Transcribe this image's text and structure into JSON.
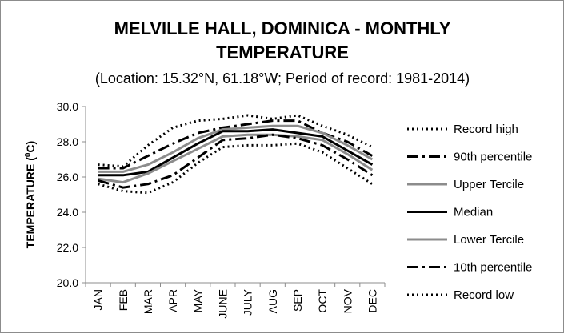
{
  "chart_data": {
    "type": "line",
    "title_line1": "MELVILLE HALL, DOMINICA - MONTHLY",
    "title_line2": "TEMPERATURE",
    "subtitle": "(Location: 15.32°N, 61.18°W; Period of record: 1981-2014)",
    "ylabel_main": "TEMPERATURE (",
    "ylabel_sup": "0",
    "ylabel_end": "C)",
    "xlabel": "",
    "categories": [
      "JAN",
      "FEB",
      "MAR",
      "APR",
      "MAY",
      "JUNE",
      "JULY",
      "AUG",
      "SEP",
      "OCT",
      "NOV",
      "DEC"
    ],
    "ylim": [
      20,
      30
    ],
    "yticks": [
      "20.0",
      "22.0",
      "24.0",
      "26.0",
      "28.0",
      "30.0"
    ],
    "grid": false,
    "legend_position": "right",
    "series": [
      {
        "name": "Record high",
        "color": "#000000",
        "dash": "dot",
        "width": 3,
        "values": [
          26.7,
          26.6,
          27.8,
          28.8,
          29.2,
          29.3,
          29.5,
          29.3,
          29.5,
          28.9,
          28.4,
          27.7
        ]
      },
      {
        "name": "90th percentile",
        "color": "#000000",
        "dash": "dashdot",
        "width": 3,
        "values": [
          26.5,
          26.5,
          27.2,
          27.9,
          28.5,
          28.8,
          29.0,
          29.2,
          29.2,
          28.5,
          28.0,
          27.2
        ]
      },
      {
        "name": "Upper Tercile",
        "color": "#8c8c8c",
        "dash": "solid",
        "width": 3,
        "values": [
          26.3,
          26.3,
          26.7,
          27.4,
          28.2,
          28.7,
          28.8,
          28.9,
          28.9,
          28.5,
          27.8,
          27.0
        ]
      },
      {
        "name": "Median",
        "color": "#000000",
        "dash": "solid",
        "width": 3,
        "values": [
          26.1,
          26.1,
          26.3,
          27.1,
          27.9,
          28.6,
          28.6,
          28.7,
          28.5,
          28.3,
          27.5,
          26.7
        ]
      },
      {
        "name": "Lower Tercile",
        "color": "#8c8c8c",
        "dash": "solid",
        "width": 3,
        "values": [
          25.9,
          25.7,
          26.2,
          26.9,
          27.6,
          28.3,
          28.4,
          28.4,
          28.3,
          28.1,
          27.3,
          26.4
        ]
      },
      {
        "name": "10th percentile",
        "color": "#000000",
        "dash": "dashdot",
        "width": 3,
        "values": [
          25.8,
          25.4,
          25.6,
          26.1,
          27.1,
          28.1,
          28.2,
          28.4,
          28.2,
          27.8,
          27.0,
          26.1
        ]
      },
      {
        "name": "Record low",
        "color": "#000000",
        "dash": "dot",
        "width": 3,
        "values": [
          25.6,
          25.2,
          25.1,
          25.7,
          26.8,
          27.7,
          27.8,
          27.8,
          27.9,
          27.4,
          26.5,
          25.6
        ]
      }
    ]
  }
}
